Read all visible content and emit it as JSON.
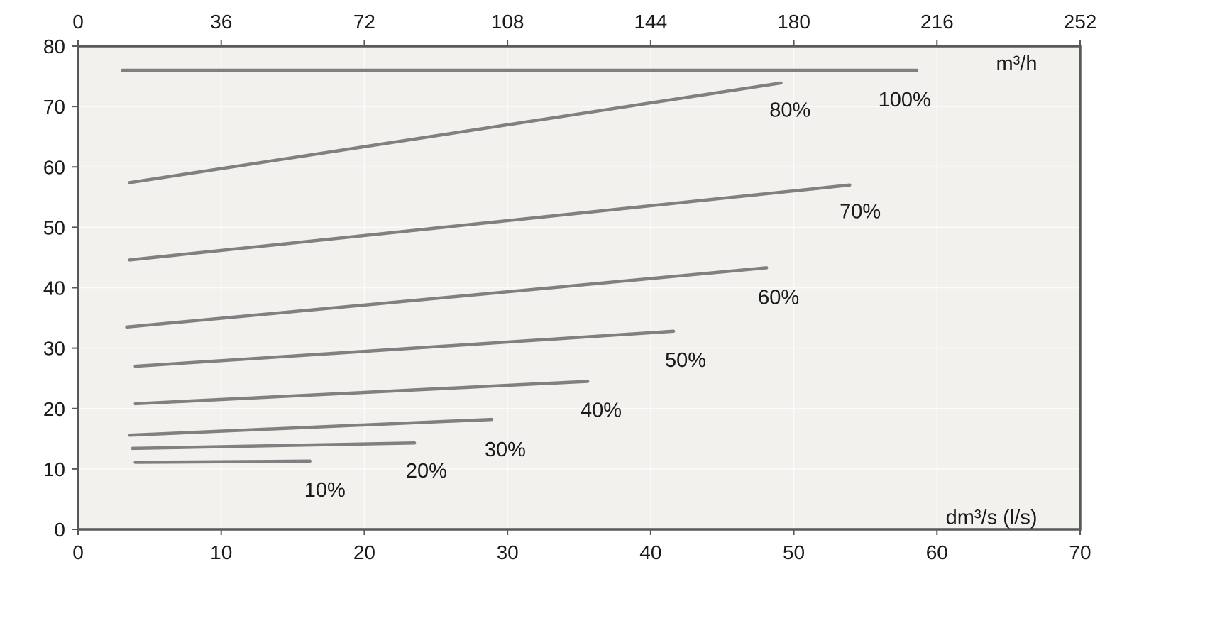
{
  "chart_data": {
    "type": "line",
    "title": "",
    "x_bottom": {
      "label": "dm³/s (l/s)",
      "label_pos": [
        67,
        0.9
      ],
      "min": 0,
      "max": 70,
      "ticks": [
        0,
        10,
        20,
        30,
        40,
        50,
        60,
        70
      ]
    },
    "x_top": {
      "label": "m³/h",
      "label_pos": [
        67,
        76
      ],
      "min": 0,
      "max": 252,
      "ticks": [
        0,
        36,
        72,
        108,
        144,
        180,
        216,
        252
      ]
    },
    "y": {
      "label": "",
      "min": 0,
      "max": 80,
      "ticks": [
        0,
        10,
        20,
        30,
        40,
        50,
        60,
        70,
        80
      ]
    },
    "series": [
      {
        "name": "100%",
        "points": [
          [
            3.1,
            76.0
          ],
          [
            58.6,
            76.0
          ]
        ],
        "label_pos": [
          55.9,
          70.0
        ]
      },
      {
        "name": "80%",
        "points": [
          [
            3.6,
            57.4
          ],
          [
            49.1,
            73.9
          ]
        ],
        "label_pos": [
          48.3,
          68.3
        ]
      },
      {
        "name": "70%",
        "points": [
          [
            3.6,
            44.6
          ],
          [
            53.9,
            57.0
          ]
        ],
        "label_pos": [
          53.2,
          51.5
        ]
      },
      {
        "name": "60%",
        "points": [
          [
            3.4,
            33.5
          ],
          [
            48.1,
            43.3
          ]
        ],
        "label_pos": [
          47.5,
          37.3
        ]
      },
      {
        "name": "50%",
        "points": [
          [
            4.0,
            27.0
          ],
          [
            41.6,
            32.8
          ]
        ],
        "label_pos": [
          41.0,
          26.9
        ]
      },
      {
        "name": "40%",
        "points": [
          [
            4.0,
            20.8
          ],
          [
            35.6,
            24.5
          ]
        ],
        "label_pos": [
          35.1,
          18.6
        ]
      },
      {
        "name": "30%",
        "points": [
          [
            3.6,
            15.6
          ],
          [
            28.9,
            18.2
          ]
        ],
        "label_pos": [
          28.4,
          12.1
        ]
      },
      {
        "name": "20%",
        "points": [
          [
            3.8,
            13.4
          ],
          [
            23.5,
            14.3
          ]
        ],
        "label_pos": [
          22.9,
          8.6
        ]
      },
      {
        "name": "10%",
        "points": [
          [
            4.0,
            11.1
          ],
          [
            16.2,
            11.3
          ]
        ],
        "label_pos": [
          15.8,
          5.4
        ]
      }
    ],
    "colors": {
      "line": "#808080",
      "border": "#595959",
      "plot_bg": "#f2f1ee",
      "grid": "#fbfbf9",
      "text": "#1a1a1a"
    },
    "layout": {
      "legend": "inline-labels",
      "grid": true
    }
  }
}
